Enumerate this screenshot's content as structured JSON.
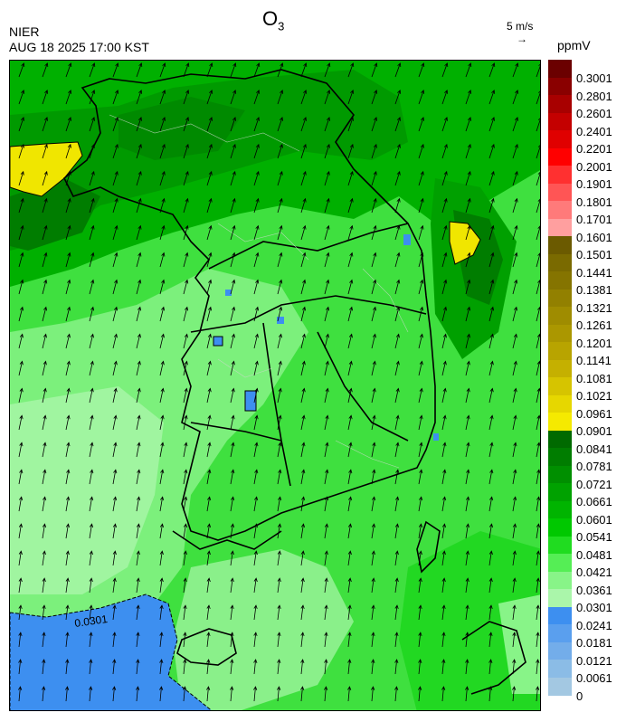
{
  "header": {
    "agency": "NIER",
    "datetime": "AUG 18 2025 17:00 KST",
    "title_main": "O",
    "title_sub": "3",
    "wind_scale_label": "5 m/s",
    "wind_scale_arrow": "→",
    "unit": "ppmV"
  },
  "map": {
    "contour_label": "0.0301",
    "wind_direction": "south-southwest to north-northeast"
  },
  "colorbar": {
    "levels": [
      {
        "label": "0.3001",
        "color": "#6b0000"
      },
      {
        "label": "0.2801",
        "color": "#8a0000"
      },
      {
        "label": "0.2601",
        "color": "#a80000"
      },
      {
        "label": "0.2401",
        "color": "#c40000"
      },
      {
        "label": "0.2201",
        "color": "#e00000"
      },
      {
        "label": "0.2001",
        "color": "#ff0000"
      },
      {
        "label": "0.1901",
        "color": "#ff3030"
      },
      {
        "label": "0.1801",
        "color": "#ff5555"
      },
      {
        "label": "0.1701",
        "color": "#ff7a7a"
      },
      {
        "label": "0.1601",
        "color": "#ff9f9f"
      },
      {
        "label": "0.1501",
        "color": "#6b5a00"
      },
      {
        "label": "0.1441",
        "color": "#7a6a00"
      },
      {
        "label": "0.1381",
        "color": "#857400"
      },
      {
        "label": "0.1321",
        "color": "#928000"
      },
      {
        "label": "0.1261",
        "color": "#9f8c00"
      },
      {
        "label": "0.1201",
        "color": "#ab9700"
      },
      {
        "label": "0.1141",
        "color": "#b8a400"
      },
      {
        "label": "0.1081",
        "color": "#c5b000"
      },
      {
        "label": "0.1021",
        "color": "#d6c400"
      },
      {
        "label": "0.0961",
        "color": "#e6d700"
      },
      {
        "label": "0.0901",
        "color": "#f5ea00"
      },
      {
        "label": "0.0841",
        "color": "#006a00"
      },
      {
        "label": "0.0781",
        "color": "#007d00"
      },
      {
        "label": "0.0721",
        "color": "#008f00"
      },
      {
        "label": "0.0661",
        "color": "#00a200"
      },
      {
        "label": "0.0601",
        "color": "#00b400"
      },
      {
        "label": "0.0541",
        "color": "#00c800"
      },
      {
        "label": "0.0481",
        "color": "#20dc20"
      },
      {
        "label": "0.0421",
        "color": "#55ee55"
      },
      {
        "label": "0.0361",
        "color": "#88f488"
      },
      {
        "label": "0.0301",
        "color": "#aaf6aa"
      },
      {
        "label": "0.0241",
        "color": "#3d8ff0"
      },
      {
        "label": "0.0181",
        "color": "#5a9fee"
      },
      {
        "label": "0.0121",
        "color": "#73adea"
      },
      {
        "label": "0.0061",
        "color": "#8bbce6"
      },
      {
        "label": "0",
        "color": "#a3c8e2"
      }
    ]
  }
}
